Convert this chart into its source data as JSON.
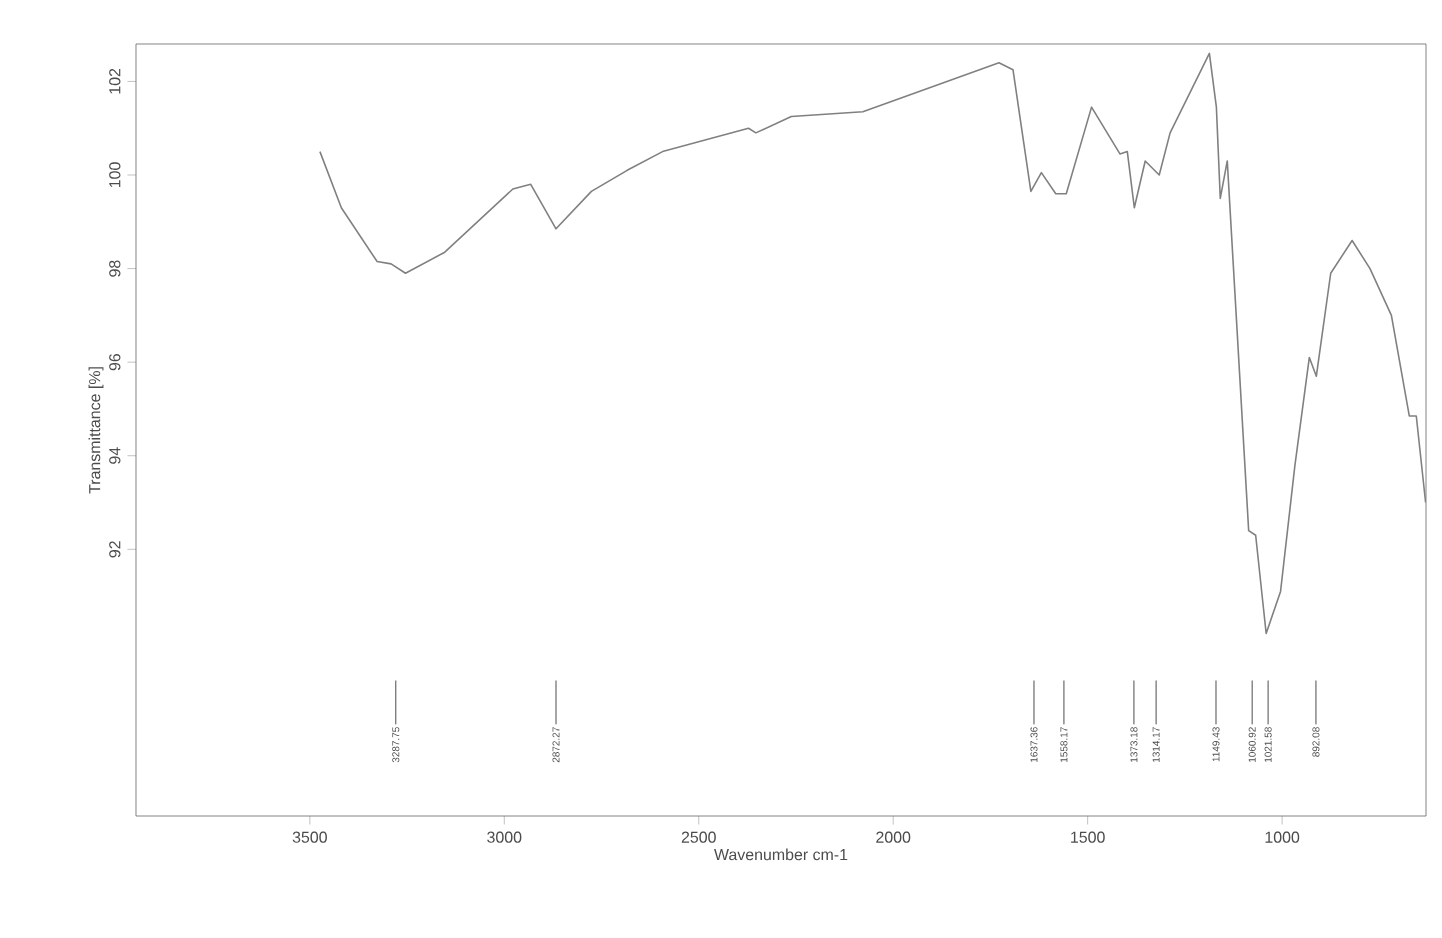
{
  "chart_data": {
    "type": "line",
    "xlabel": "Wavenumber cm-1",
    "ylabel": "Transmittance [%]",
    "xlim": [
      3947,
      630
    ],
    "ylim": [
      86.3,
      102.8
    ],
    "xticks": [
      3500,
      3000,
      2500,
      2000,
      1500,
      1000
    ],
    "yticks": [
      92,
      94,
      96,
      98,
      100,
      102
    ],
    "grid": false,
    "marker": "none",
    "line_style": "solid",
    "series": [
      {
        "color": "#808080",
        "x": [
          3474,
          3419,
          3327,
          3291,
          3254,
          3153,
          2978,
          2932,
          2867,
          2776,
          2684,
          2593,
          2372,
          2353,
          2262,
          2078,
          1894,
          1728,
          1692,
          1646,
          1619,
          1582,
          1555,
          1490,
          1417,
          1398,
          1380,
          1352,
          1316,
          1288,
          1187,
          1169,
          1159,
          1141,
          1086,
          1068,
          1041,
          1004,
          967,
          930,
          912,
          875,
          820,
          774,
          719,
          673,
          655,
          631
        ],
        "values": [
          100.5,
          99.3,
          98.15,
          98.1,
          97.9,
          98.35,
          99.7,
          99.8,
          98.85,
          99.65,
          100.1,
          100.5,
          101.0,
          100.9,
          101.25,
          101.35,
          101.9,
          102.4,
          102.25,
          99.65,
          100.05,
          99.6,
          99.6,
          101.45,
          100.45,
          100.5,
          99.3,
          100.3,
          100.0,
          100.9,
          102.6,
          101.45,
          99.5,
          100.3,
          92.4,
          92.3,
          90.2,
          91.1,
          93.8,
          96.1,
          95.7,
          97.9,
          98.6,
          98.0,
          97.0,
          94.85,
          94.85,
          93.0
        ]
      }
    ],
    "annotations": [
      {
        "text": "3287.75",
        "x": 3279
      },
      {
        "text": "2872.27",
        "x": 2867
      },
      {
        "text": "1637.36",
        "x": 1638
      },
      {
        "text": "1558.17",
        "x": 1561
      },
      {
        "text": "1373.18",
        "x": 1381
      },
      {
        "text": "1314.17",
        "x": 1324
      },
      {
        "text": "1149.43",
        "x": 1170
      },
      {
        "text": "1060.92",
        "x": 1077
      },
      {
        "text": "1021.58",
        "x": 1036
      },
      {
        "text": "892.08",
        "x": 913
      }
    ]
  }
}
